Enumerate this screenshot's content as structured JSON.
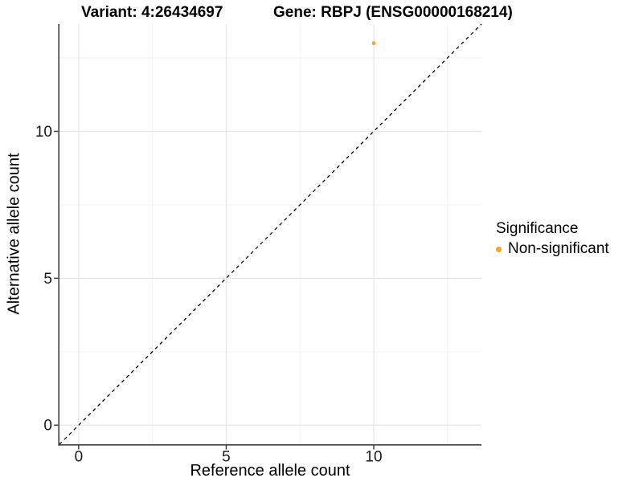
{
  "chart_data": {
    "type": "scatter",
    "titles": {
      "left": "Variant: 4:26434697",
      "right": "Gene: RBPJ (ENSG00000168214)"
    },
    "xlabel": "Reference allele count",
    "ylabel": "Alternative allele count",
    "xlim": [
      -0.65,
      13.65
    ],
    "ylim": [
      -0.65,
      13.65
    ],
    "x_major_ticks": [
      0,
      5,
      10
    ],
    "y_major_ticks": [
      0,
      5,
      10
    ],
    "x_minor_ticks": [
      2.5,
      7.5,
      12.5
    ],
    "y_minor_ticks": [
      2.5,
      7.5,
      12.5
    ],
    "grid": "major and minor gridlines, white background",
    "series": [
      {
        "name": "Non-significant",
        "color": "#FFA320",
        "points": [
          {
            "x": 10,
            "y": 13
          }
        ]
      }
    ],
    "reference_line": {
      "kind": "identity y=x",
      "style": "dashed",
      "color": "#000000"
    },
    "legend": {
      "title": "Significance",
      "position": "right",
      "entries": [
        {
          "label": "Non-significant",
          "color": "#FFA320"
        }
      ]
    },
    "style_colors": {
      "background": "#FFFFFF",
      "grid_major": "#E6E6E6",
      "grid_minor": "#F2F2F2",
      "axis_line": "#404040",
      "tick": "#333333",
      "tick_label": "#1A1A1A"
    }
  }
}
